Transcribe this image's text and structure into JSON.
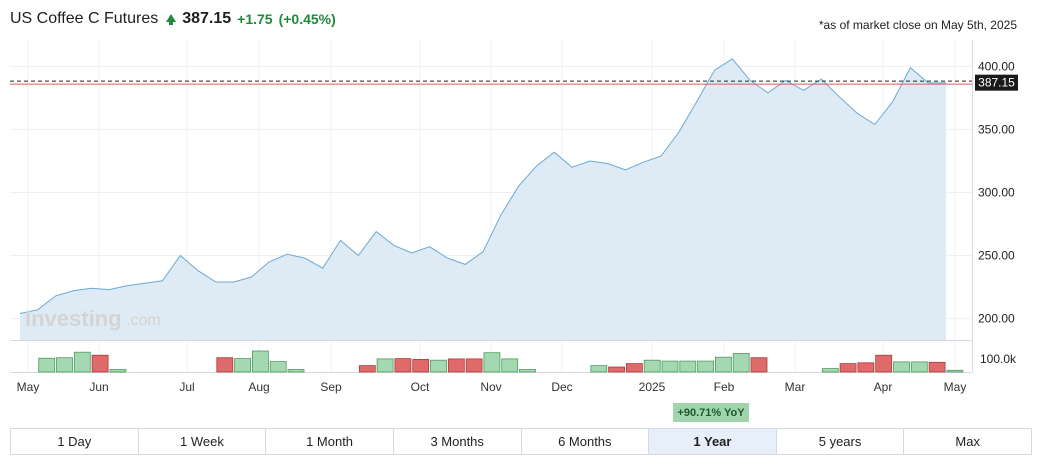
{
  "header": {
    "title": "US Coffee C Futures",
    "price": "387.15",
    "change": "+1.75",
    "change_pct": "(+0.45%)",
    "as_of": "*as of market close on May 5th, 2025"
  },
  "watermark": {
    "brand": "Investing",
    "suffix": ".com"
  },
  "yoy_badge": "+90.71% YoY",
  "ranges": [
    "1 Day",
    "1 Week",
    "1 Month",
    "3 Months",
    "6 Months",
    "1 Year",
    "5 years",
    "Max"
  ],
  "active_range": "1 Year",
  "colors": {
    "line": "#6aa8d6",
    "area": "#deebf5",
    "up_volume": "#a4d8b0",
    "down_volume": "#e06a6a",
    "last_price_tag": "#1a1a1a",
    "last_price_line": "#e15a5a",
    "positive": "#1f8a3b"
  },
  "chart_data": {
    "type": "area",
    "x_ticks": [
      "May",
      "Jun",
      "Jul",
      "Aug",
      "Sep",
      "Oct",
      "Nov",
      "Dec",
      "2025",
      "Feb",
      "Mar",
      "Apr",
      "May"
    ],
    "y_ticks": [
      "200.00",
      "250.00",
      "300.00",
      "350.00",
      "400.00"
    ],
    "ylim": [
      183,
      421
    ],
    "last_price": "387.15",
    "volume_tick": "100.0k",
    "volume_max": 125,
    "series": [
      {
        "x": 0,
        "y": 204
      },
      {
        "x": 1,
        "y": 207
      },
      {
        "x": 2,
        "y": 218
      },
      {
        "x": 3,
        "y": 222
      },
      {
        "x": 4,
        "y": 224
      },
      {
        "x": 5,
        "y": 223
      },
      {
        "x": 6,
        "y": 226
      },
      {
        "x": 7,
        "y": 228
      },
      {
        "x": 8,
        "y": 230
      },
      {
        "x": 9,
        "y": 250
      },
      {
        "x": 10,
        "y": 238
      },
      {
        "x": 11,
        "y": 229
      },
      {
        "x": 12,
        "y": 229
      },
      {
        "x": 13,
        "y": 233
      },
      {
        "x": 14,
        "y": 245
      },
      {
        "x": 15,
        "y": 251
      },
      {
        "x": 16,
        "y": 248
      },
      {
        "x": 17,
        "y": 240
      },
      {
        "x": 18,
        "y": 262
      },
      {
        "x": 19,
        "y": 250
      },
      {
        "x": 20,
        "y": 269
      },
      {
        "x": 21,
        "y": 258
      },
      {
        "x": 22,
        "y": 252
      },
      {
        "x": 23,
        "y": 257
      },
      {
        "x": 24,
        "y": 248
      },
      {
        "x": 25,
        "y": 243
      },
      {
        "x": 26,
        "y": 253
      },
      {
        "x": 27,
        "y": 282
      },
      {
        "x": 28,
        "y": 305
      },
      {
        "x": 29,
        "y": 321
      },
      {
        "x": 30,
        "y": 332
      },
      {
        "x": 31,
        "y": 320
      },
      {
        "x": 32,
        "y": 325
      },
      {
        "x": 33,
        "y": 323
      },
      {
        "x": 34,
        "y": 318
      },
      {
        "x": 35,
        "y": 324
      },
      {
        "x": 36,
        "y": 329
      },
      {
        "x": 37,
        "y": 348
      },
      {
        "x": 38,
        "y": 372
      },
      {
        "x": 39,
        "y": 397
      },
      {
        "x": 40,
        "y": 406
      },
      {
        "x": 41,
        "y": 389
      },
      {
        "x": 42,
        "y": 379
      },
      {
        "x": 43,
        "y": 389
      },
      {
        "x": 44,
        "y": 381
      },
      {
        "x": 45,
        "y": 390
      },
      {
        "x": 46,
        "y": 376
      },
      {
        "x": 47,
        "y": 363
      },
      {
        "x": 48,
        "y": 354
      },
      {
        "x": 49,
        "y": 372
      },
      {
        "x": 50,
        "y": 399
      },
      {
        "x": 51,
        "y": 387
      },
      {
        "x": 52,
        "y": 387
      }
    ],
    "volume": [
      {
        "x": 1.5,
        "v": 82,
        "dir": "up"
      },
      {
        "x": 2.5,
        "v": 85,
        "dir": "up"
      },
      {
        "x": 3.5,
        "v": 118,
        "dir": "up"
      },
      {
        "x": 4.5,
        "v": 100,
        "dir": "down"
      },
      {
        "x": 5.5,
        "v": 15,
        "dir": "up"
      },
      {
        "x": 11.5,
        "v": 85,
        "dir": "down"
      },
      {
        "x": 12.5,
        "v": 80,
        "dir": "up"
      },
      {
        "x": 13.5,
        "v": 125,
        "dir": "up"
      },
      {
        "x": 14.5,
        "v": 62,
        "dir": "up"
      },
      {
        "x": 15.5,
        "v": 15,
        "dir": "up"
      },
      {
        "x": 19.5,
        "v": 38,
        "dir": "down"
      },
      {
        "x": 20.5,
        "v": 78,
        "dir": "up"
      },
      {
        "x": 21.5,
        "v": 80,
        "dir": "down"
      },
      {
        "x": 22.5,
        "v": 75,
        "dir": "down"
      },
      {
        "x": 23.5,
        "v": 70,
        "dir": "up"
      },
      {
        "x": 24.5,
        "v": 78,
        "dir": "down"
      },
      {
        "x": 25.5,
        "v": 78,
        "dir": "down"
      },
      {
        "x": 26.5,
        "v": 115,
        "dir": "up"
      },
      {
        "x": 27.5,
        "v": 78,
        "dir": "up"
      },
      {
        "x": 28.5,
        "v": 15,
        "dir": "up"
      },
      {
        "x": 32.5,
        "v": 38,
        "dir": "up"
      },
      {
        "x": 33.5,
        "v": 30,
        "dir": "down"
      },
      {
        "x": 34.5,
        "v": 50,
        "dir": "down"
      },
      {
        "x": 35.5,
        "v": 70,
        "dir": "up"
      },
      {
        "x": 36.5,
        "v": 65,
        "dir": "up"
      },
      {
        "x": 37.5,
        "v": 65,
        "dir": "up"
      },
      {
        "x": 38.5,
        "v": 65,
        "dir": "up"
      },
      {
        "x": 39.5,
        "v": 88,
        "dir": "up"
      },
      {
        "x": 40.5,
        "v": 110,
        "dir": "up"
      },
      {
        "x": 41.5,
        "v": 85,
        "dir": "down"
      },
      {
        "x": 45.5,
        "v": 20,
        "dir": "up"
      },
      {
        "x": 46.5,
        "v": 50,
        "dir": "down"
      },
      {
        "x": 47.5,
        "v": 55,
        "dir": "down"
      },
      {
        "x": 48.5,
        "v": 100,
        "dir": "down"
      },
      {
        "x": 49.5,
        "v": 60,
        "dir": "up"
      },
      {
        "x": 50.5,
        "v": 60,
        "dir": "up"
      },
      {
        "x": 51.5,
        "v": 58,
        "dir": "down"
      },
      {
        "x": 52.5,
        "v": 10,
        "dir": "up"
      }
    ],
    "grid": true
  }
}
